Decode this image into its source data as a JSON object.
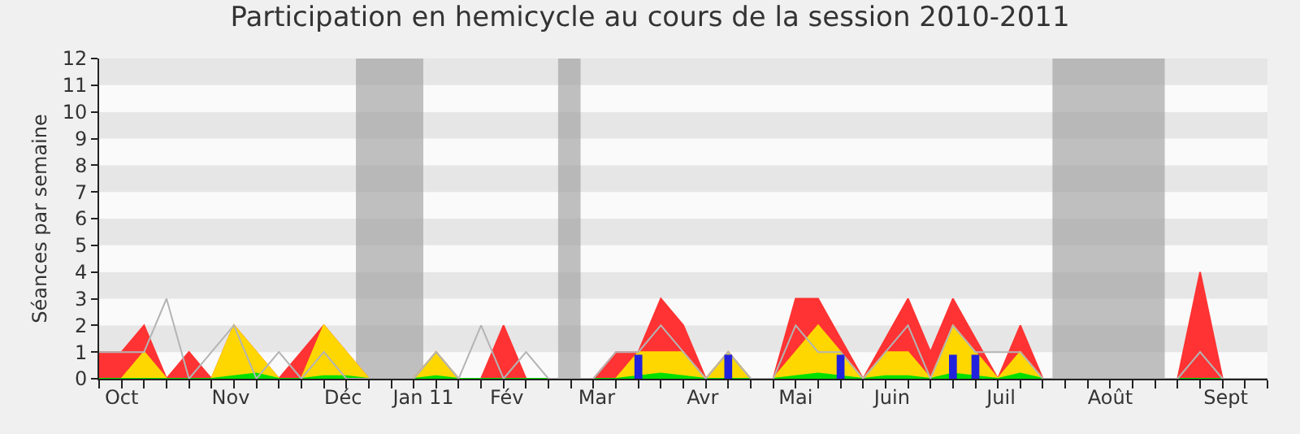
{
  "chart_data": {
    "type": "area",
    "title": "Participation en hemicycle au cours de la session 2010-2011",
    "ylabel": "Séances par semaine",
    "x": [
      "2010-09-27",
      "2010-10-04",
      "2010-10-11",
      "2010-10-18",
      "2010-10-25",
      "2010-11-01",
      "2010-11-08",
      "2010-11-15",
      "2010-11-22",
      "2010-11-29",
      "2010-12-06",
      "2010-12-13",
      "2010-12-20",
      "2010-12-27",
      "2011-01-03",
      "2011-01-10",
      "2011-01-17",
      "2011-01-24",
      "2011-01-31",
      "2011-02-07",
      "2011-02-14",
      "2011-02-21",
      "2011-02-28",
      "2011-03-07",
      "2011-03-14",
      "2011-03-21",
      "2011-03-28",
      "2011-04-04",
      "2011-04-11",
      "2011-04-18",
      "2011-04-25",
      "2011-05-02",
      "2011-05-09",
      "2011-05-16",
      "2011-05-23",
      "2011-05-30",
      "2011-06-06",
      "2011-06-13",
      "2011-06-20",
      "2011-06-27",
      "2011-07-04",
      "2011-07-11",
      "2011-07-18",
      "2011-07-25",
      "2011-08-01",
      "2011-08-08",
      "2011-08-15",
      "2011-08-22",
      "2011-08-29",
      "2011-09-05",
      "2011-09-12",
      "2011-09-19",
      "2011-09-26"
    ],
    "series": [
      {
        "color": "#ff3333",
        "values": [
          1,
          1,
          2,
          0,
          1,
          0,
          2,
          1,
          0,
          1,
          2,
          1,
          0,
          0,
          0,
          1,
          0,
          0,
          2,
          0,
          0,
          0,
          0,
          1,
          1,
          3,
          2,
          0,
          1,
          0,
          0,
          3,
          3,
          1.5,
          0,
          1.5,
          3,
          1,
          3,
          1.5,
          0,
          2,
          0,
          0,
          0,
          0,
          0,
          0,
          0,
          4,
          0,
          0,
          0
        ]
      },
      {
        "color": "#ffd700",
        "values": [
          0,
          0,
          1,
          0,
          0,
          0,
          2,
          1,
          0,
          0,
          2,
          1,
          0,
          0,
          0,
          1,
          0,
          0,
          0,
          0,
          0,
          0,
          0,
          0,
          1,
          1,
          1,
          0,
          1,
          0,
          0,
          1,
          2,
          1,
          0,
          1,
          1,
          0,
          2,
          1,
          0,
          1,
          0,
          0,
          0,
          0,
          0,
          0,
          0,
          0,
          0,
          0,
          0
        ]
      },
      {
        "color": "#00e000",
        "values": [
          0,
          0,
          0,
          0,
          0,
          0,
          0.1,
          0.2,
          0,
          0,
          0.1,
          0.1,
          0,
          0,
          0,
          0.1,
          0,
          0,
          0,
          0,
          0,
          0,
          0,
          0,
          0.1,
          0.2,
          0.1,
          0,
          0,
          0,
          0,
          0.1,
          0.2,
          0.1,
          0,
          0.1,
          0.1,
          0,
          0.2,
          0.1,
          0,
          0.2,
          0,
          0,
          0,
          0,
          0,
          0,
          0,
          0,
          0,
          0,
          0
        ]
      },
      {
        "type": "line",
        "color": "#b4b4b4",
        "values": [
          1,
          1,
          1,
          3,
          0,
          1,
          2,
          0,
          1,
          0,
          1,
          0,
          0,
          0,
          0,
          1,
          0,
          2,
          0,
          1,
          0,
          0,
          0,
          1,
          1,
          2,
          1,
          0,
          1,
          0,
          0,
          2,
          1,
          1,
          0,
          1,
          2,
          0,
          2,
          1,
          1,
          1,
          0,
          0,
          0,
          0,
          0,
          0,
          0,
          1,
          0,
          0,
          0
        ]
      },
      {
        "type": "bar",
        "color": "#2222dd",
        "x": [
          "2011-03-14",
          "2011-04-11",
          "2011-05-16",
          "2011-06-20",
          "2011-06-27"
        ],
        "values": [
          0.9,
          0.9,
          0.9,
          0.9,
          0.9
        ]
      }
    ],
    "xlim": [
      "2010-09-27",
      "2011-09-26"
    ],
    "xticks": [
      {
        "value": "2010-10-04",
        "label": "Oct"
      },
      {
        "value": "2010-11-07",
        "label": "Nov"
      },
      {
        "value": "2010-12-12",
        "label": "Déc"
      },
      {
        "value": "2011-01-06",
        "label": "Jan 11"
      },
      {
        "value": "2011-02-01",
        "label": "Fév"
      },
      {
        "value": "2011-03-01",
        "label": "Mar"
      },
      {
        "value": "2011-04-03",
        "label": "Avr"
      },
      {
        "value": "2011-05-02",
        "label": "Mai"
      },
      {
        "value": "2011-06-01",
        "label": "Juin"
      },
      {
        "value": "2011-07-05",
        "label": "Juil"
      },
      {
        "value": "2011-08-08",
        "label": "Août"
      },
      {
        "value": "2011-09-13",
        "label": "Sept"
      },
      {
        "value": "2010-09-27",
        "label": null
      },
      {
        "value": "2010-10-04",
        "label": null
      },
      {
        "value": "2010-10-11",
        "label": null
      },
      {
        "value": "2010-10-18",
        "label": null
      },
      {
        "value": "2010-10-25",
        "label": null
      },
      {
        "value": "2010-11-01",
        "label": null
      },
      {
        "value": "2010-11-08",
        "label": null
      },
      {
        "value": "2010-11-15",
        "label": null
      },
      {
        "value": "2010-11-22",
        "label": null
      },
      {
        "value": "2010-11-29",
        "label": null
      },
      {
        "value": "2010-12-06",
        "label": null
      },
      {
        "value": "2010-12-13",
        "label": null
      },
      {
        "value": "2010-12-20",
        "label": null
      },
      {
        "value": "2010-12-27",
        "label": null
      },
      {
        "value": "2011-01-03",
        "label": null
      },
      {
        "value": "2011-01-10",
        "label": null
      },
      {
        "value": "2011-01-17",
        "label": null
      },
      {
        "value": "2011-01-24",
        "label": null
      },
      {
        "value": "2011-01-31",
        "label": null
      },
      {
        "value": "2011-02-07",
        "label": null
      },
      {
        "value": "2011-02-14",
        "label": null
      },
      {
        "value": "2011-02-21",
        "label": null
      },
      {
        "value": "2011-02-28",
        "label": null
      },
      {
        "value": "2011-03-07",
        "label": null
      },
      {
        "value": "2011-03-14",
        "label": null
      },
      {
        "value": "2011-03-21",
        "label": null
      },
      {
        "value": "2011-03-28",
        "label": null
      },
      {
        "value": "2011-04-04",
        "label": null
      },
      {
        "value": "2011-04-11",
        "label": null
      },
      {
        "value": "2011-04-18",
        "label": null
      },
      {
        "value": "2011-04-25",
        "label": null
      },
      {
        "value": "2011-05-02",
        "label": null
      },
      {
        "value": "2011-05-09",
        "label": null
      },
      {
        "value": "2011-05-16",
        "label": null
      },
      {
        "value": "2011-05-23",
        "label": null
      },
      {
        "value": "2011-05-30",
        "label": null
      },
      {
        "value": "2011-06-06",
        "label": null
      },
      {
        "value": "2011-06-13",
        "label": null
      },
      {
        "value": "2011-06-20",
        "label": null
      },
      {
        "value": "2011-06-27",
        "label": null
      },
      {
        "value": "2011-07-04",
        "label": null
      },
      {
        "value": "2011-07-11",
        "label": null
      },
      {
        "value": "2011-07-18",
        "label": null
      },
      {
        "value": "2011-07-25",
        "label": null
      },
      {
        "value": "2011-08-01",
        "label": null
      },
      {
        "value": "2011-08-08",
        "label": null
      },
      {
        "value": "2011-08-15",
        "label": null
      },
      {
        "value": "2011-08-22",
        "label": null
      },
      {
        "value": "2011-08-29",
        "label": null
      },
      {
        "value": "2011-09-05",
        "label": null
      },
      {
        "value": "2011-09-12",
        "label": null
      },
      {
        "value": "2011-09-19",
        "label": null
      },
      {
        "value": "2011-09-26",
        "label": null
      }
    ],
    "ylim": [
      0,
      12
    ],
    "yticks": [
      0,
      1,
      2,
      3,
      4,
      5,
      6,
      7,
      8,
      9,
      10,
      11,
      12
    ],
    "bands": [
      {
        "axis": "x",
        "from": "2010-12-16",
        "to": "2011-01-06",
        "color": "#a0a0a0"
      },
      {
        "axis": "x",
        "from": "2011-02-17",
        "to": "2011-02-24",
        "color": "#a0a0a0"
      },
      {
        "axis": "x",
        "from": "2011-07-21",
        "to": "2011-08-25",
        "color": "#a0a0a0"
      }
    ]
  }
}
